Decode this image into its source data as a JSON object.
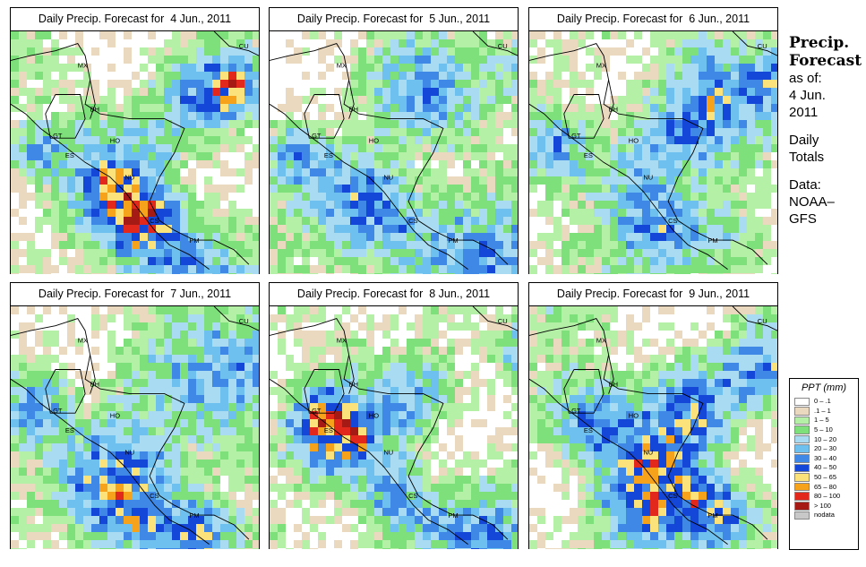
{
  "panels": [
    {
      "title": "Daily Precip. Forecast for  4 Jun., 2011",
      "seed": 11
    },
    {
      "title": "Daily Precip. Forecast for  5 Jun., 2011",
      "seed": 23
    },
    {
      "title": "Daily Precip. Forecast for  6 Jun., 2011",
      "seed": 37
    },
    {
      "title": "Daily Precip. Forecast for  7 Jun., 2011",
      "seed": 41
    },
    {
      "title": "Daily Precip. Forecast for  8 Jun., 2011",
      "seed": 59
    },
    {
      "title": "Daily Precip. Forecast for  9 Jun., 2011",
      "seed": 73
    }
  ],
  "country_labels": [
    "MX",
    "BH",
    "GT",
    "HO",
    "ES",
    "NU",
    "CS",
    "PM",
    "CU"
  ],
  "side": {
    "title_line1": "Precip.",
    "title_line2": "Forecast",
    "asof_line1": "as of:",
    "asof_line2": "4 Jun.",
    "asof_line3": "2011",
    "daily_line1": "Daily",
    "daily_line2": "Totals",
    "data_line1": "Data:",
    "data_line2": "NOAA–",
    "data_line3": "GFS"
  },
  "legend": {
    "title": "PPT (mm)",
    "items": [
      {
        "label": "0 – .1",
        "color": "#ffffff"
      },
      {
        "label": ".1 – 1",
        "color": "#ead9bf"
      },
      {
        "label": "1 – 5",
        "color": "#b5f0a7"
      },
      {
        "label": "5 – 10",
        "color": "#7ee07a"
      },
      {
        "label": "10 – 20",
        "color": "#a9dcf2"
      },
      {
        "label": "20 – 30",
        "color": "#6ec0ee"
      },
      {
        "label": "30 – 40",
        "color": "#3f88e6"
      },
      {
        "label": "40 – 50",
        "color": "#1446d8"
      },
      {
        "label": "50 – 65",
        "color": "#fce27a"
      },
      {
        "label": "65 – 80",
        "color": "#f7a21b"
      },
      {
        "label": "80 – 100",
        "color": "#e2281c"
      },
      {
        "label": "> 100",
        "color": "#a51a14"
      },
      {
        "label": "nodata",
        "color": "#c8c8c8"
      }
    ]
  }
}
